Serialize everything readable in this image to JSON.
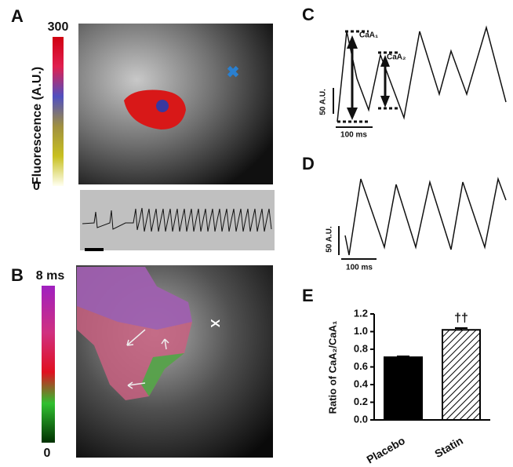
{
  "panel_a": {
    "label": "A",
    "scale_max": "300",
    "scale_min": "0",
    "scale_title": "Fluorescence (A.U.)"
  },
  "panel_b": {
    "label": "B",
    "scale_max": "8 ms",
    "scale_min": "0",
    "marker": "X"
  },
  "panel_c": {
    "label": "C",
    "peak_1": "CaA₁",
    "peak_2": "CaA₂",
    "y_scale": "50 A.U.",
    "x_scale": "100 ms"
  },
  "panel_d": {
    "label": "D",
    "y_scale": "50 A.U.",
    "x_scale": "100 ms"
  },
  "panel_e": {
    "label": "E"
  },
  "chart_data": {
    "type": "bar",
    "y_label": "Ratio of CaA₂/CaA₁",
    "categories": [
      "Placebo",
      "Statin"
    ],
    "values": [
      0.71,
      1.02
    ],
    "errors": [
      0.01,
      0.02
    ],
    "annotations": [
      null,
      "††"
    ],
    "colors": [
      "#000000",
      "hatch"
    ],
    "ylim": [
      0,
      1.2
    ],
    "yticks": [
      {
        "value": 0,
        "label": "0.0"
      },
      {
        "value": 0.2,
        "label": "0.2"
      },
      {
        "value": 0.4,
        "label": "0.4"
      },
      {
        "value": 0.6,
        "label": "0.6"
      },
      {
        "value": 0.8,
        "label": "0.8"
      },
      {
        "value": 1.0,
        "label": "1.0"
      },
      {
        "value": 1.2,
        "label": "1.2"
      }
    ]
  }
}
